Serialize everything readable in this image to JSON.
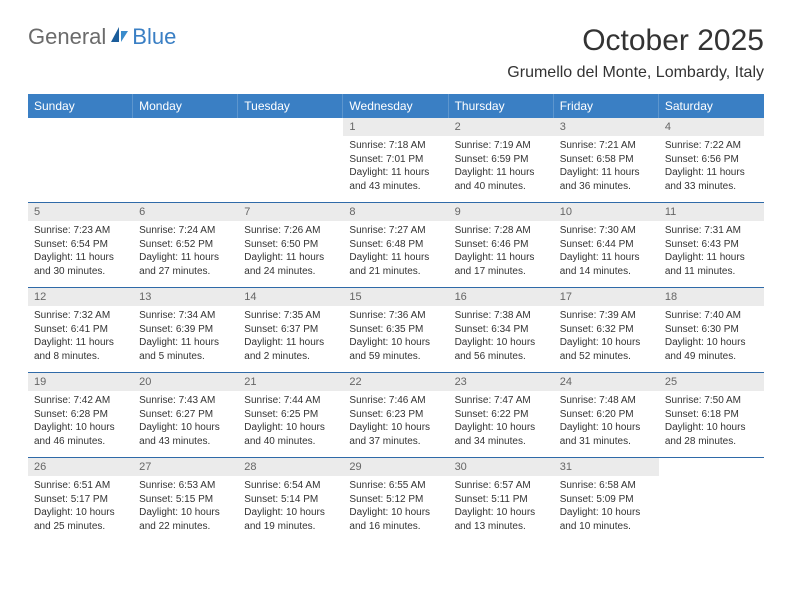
{
  "logo": {
    "general": "General",
    "blue": "Blue"
  },
  "title": "October 2025",
  "subtitle": "Grumello del Monte, Lombardy, Italy",
  "colors": {
    "header_bg": "#3a7fc4",
    "header_text": "#ffffff",
    "daynum_bg": "#ebebeb",
    "daynum_text": "#666666",
    "body_text": "#333333",
    "divider": "#2f6aa8",
    "page_bg": "#ffffff"
  },
  "typography": {
    "title_fontsize": 30,
    "subtitle_fontsize": 16,
    "dayheader_fontsize": 12,
    "daynum_fontsize": 11,
    "detail_fontsize": 10
  },
  "day_names": [
    "Sunday",
    "Monday",
    "Tuesday",
    "Wednesday",
    "Thursday",
    "Friday",
    "Saturday"
  ],
  "weeks": [
    [
      null,
      null,
      null,
      {
        "n": "1",
        "sr": "Sunrise: 7:18 AM",
        "ss": "Sunset: 7:01 PM",
        "d1": "Daylight: 11 hours",
        "d2": "and 43 minutes."
      },
      {
        "n": "2",
        "sr": "Sunrise: 7:19 AM",
        "ss": "Sunset: 6:59 PM",
        "d1": "Daylight: 11 hours",
        "d2": "and 40 minutes."
      },
      {
        "n": "3",
        "sr": "Sunrise: 7:21 AM",
        "ss": "Sunset: 6:58 PM",
        "d1": "Daylight: 11 hours",
        "d2": "and 36 minutes."
      },
      {
        "n": "4",
        "sr": "Sunrise: 7:22 AM",
        "ss": "Sunset: 6:56 PM",
        "d1": "Daylight: 11 hours",
        "d2": "and 33 minutes."
      }
    ],
    [
      {
        "n": "5",
        "sr": "Sunrise: 7:23 AM",
        "ss": "Sunset: 6:54 PM",
        "d1": "Daylight: 11 hours",
        "d2": "and 30 minutes."
      },
      {
        "n": "6",
        "sr": "Sunrise: 7:24 AM",
        "ss": "Sunset: 6:52 PM",
        "d1": "Daylight: 11 hours",
        "d2": "and 27 minutes."
      },
      {
        "n": "7",
        "sr": "Sunrise: 7:26 AM",
        "ss": "Sunset: 6:50 PM",
        "d1": "Daylight: 11 hours",
        "d2": "and 24 minutes."
      },
      {
        "n": "8",
        "sr": "Sunrise: 7:27 AM",
        "ss": "Sunset: 6:48 PM",
        "d1": "Daylight: 11 hours",
        "d2": "and 21 minutes."
      },
      {
        "n": "9",
        "sr": "Sunrise: 7:28 AM",
        "ss": "Sunset: 6:46 PM",
        "d1": "Daylight: 11 hours",
        "d2": "and 17 minutes."
      },
      {
        "n": "10",
        "sr": "Sunrise: 7:30 AM",
        "ss": "Sunset: 6:44 PM",
        "d1": "Daylight: 11 hours",
        "d2": "and 14 minutes."
      },
      {
        "n": "11",
        "sr": "Sunrise: 7:31 AM",
        "ss": "Sunset: 6:43 PM",
        "d1": "Daylight: 11 hours",
        "d2": "and 11 minutes."
      }
    ],
    [
      {
        "n": "12",
        "sr": "Sunrise: 7:32 AM",
        "ss": "Sunset: 6:41 PM",
        "d1": "Daylight: 11 hours",
        "d2": "and 8 minutes."
      },
      {
        "n": "13",
        "sr": "Sunrise: 7:34 AM",
        "ss": "Sunset: 6:39 PM",
        "d1": "Daylight: 11 hours",
        "d2": "and 5 minutes."
      },
      {
        "n": "14",
        "sr": "Sunrise: 7:35 AM",
        "ss": "Sunset: 6:37 PM",
        "d1": "Daylight: 11 hours",
        "d2": "and 2 minutes."
      },
      {
        "n": "15",
        "sr": "Sunrise: 7:36 AM",
        "ss": "Sunset: 6:35 PM",
        "d1": "Daylight: 10 hours",
        "d2": "and 59 minutes."
      },
      {
        "n": "16",
        "sr": "Sunrise: 7:38 AM",
        "ss": "Sunset: 6:34 PM",
        "d1": "Daylight: 10 hours",
        "d2": "and 56 minutes."
      },
      {
        "n": "17",
        "sr": "Sunrise: 7:39 AM",
        "ss": "Sunset: 6:32 PM",
        "d1": "Daylight: 10 hours",
        "d2": "and 52 minutes."
      },
      {
        "n": "18",
        "sr": "Sunrise: 7:40 AM",
        "ss": "Sunset: 6:30 PM",
        "d1": "Daylight: 10 hours",
        "d2": "and 49 minutes."
      }
    ],
    [
      {
        "n": "19",
        "sr": "Sunrise: 7:42 AM",
        "ss": "Sunset: 6:28 PM",
        "d1": "Daylight: 10 hours",
        "d2": "and 46 minutes."
      },
      {
        "n": "20",
        "sr": "Sunrise: 7:43 AM",
        "ss": "Sunset: 6:27 PM",
        "d1": "Daylight: 10 hours",
        "d2": "and 43 minutes."
      },
      {
        "n": "21",
        "sr": "Sunrise: 7:44 AM",
        "ss": "Sunset: 6:25 PM",
        "d1": "Daylight: 10 hours",
        "d2": "and 40 minutes."
      },
      {
        "n": "22",
        "sr": "Sunrise: 7:46 AM",
        "ss": "Sunset: 6:23 PM",
        "d1": "Daylight: 10 hours",
        "d2": "and 37 minutes."
      },
      {
        "n": "23",
        "sr": "Sunrise: 7:47 AM",
        "ss": "Sunset: 6:22 PM",
        "d1": "Daylight: 10 hours",
        "d2": "and 34 minutes."
      },
      {
        "n": "24",
        "sr": "Sunrise: 7:48 AM",
        "ss": "Sunset: 6:20 PM",
        "d1": "Daylight: 10 hours",
        "d2": "and 31 minutes."
      },
      {
        "n": "25",
        "sr": "Sunrise: 7:50 AM",
        "ss": "Sunset: 6:18 PM",
        "d1": "Daylight: 10 hours",
        "d2": "and 28 minutes."
      }
    ],
    [
      {
        "n": "26",
        "sr": "Sunrise: 6:51 AM",
        "ss": "Sunset: 5:17 PM",
        "d1": "Daylight: 10 hours",
        "d2": "and 25 minutes."
      },
      {
        "n": "27",
        "sr": "Sunrise: 6:53 AM",
        "ss": "Sunset: 5:15 PM",
        "d1": "Daylight: 10 hours",
        "d2": "and 22 minutes."
      },
      {
        "n": "28",
        "sr": "Sunrise: 6:54 AM",
        "ss": "Sunset: 5:14 PM",
        "d1": "Daylight: 10 hours",
        "d2": "and 19 minutes."
      },
      {
        "n": "29",
        "sr": "Sunrise: 6:55 AM",
        "ss": "Sunset: 5:12 PM",
        "d1": "Daylight: 10 hours",
        "d2": "and 16 minutes."
      },
      {
        "n": "30",
        "sr": "Sunrise: 6:57 AM",
        "ss": "Sunset: 5:11 PM",
        "d1": "Daylight: 10 hours",
        "d2": "and 13 minutes."
      },
      {
        "n": "31",
        "sr": "Sunrise: 6:58 AM",
        "ss": "Sunset: 5:09 PM",
        "d1": "Daylight: 10 hours",
        "d2": "and 10 minutes."
      },
      null
    ]
  ]
}
